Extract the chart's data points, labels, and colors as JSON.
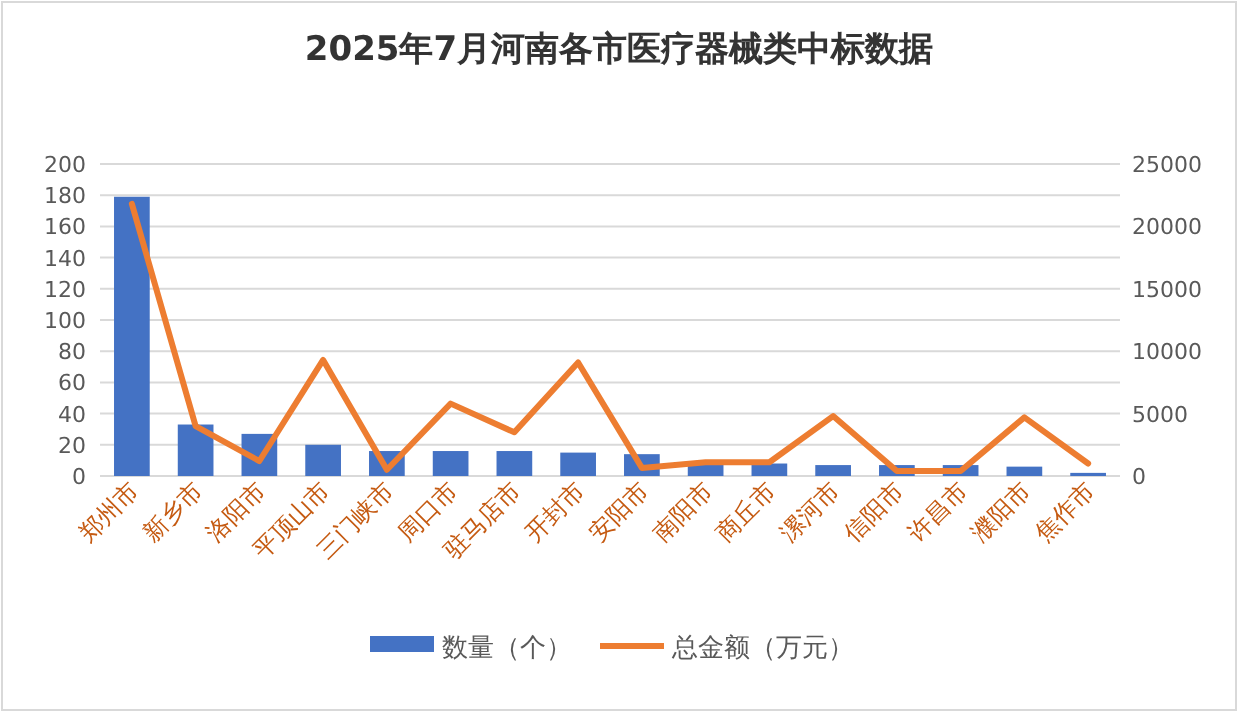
{
  "chart_data": {
    "type": "bar",
    "title": "2025年7月河南各市医疗器械类中标数据",
    "categories": [
      "郑州市",
      "新乡市",
      "洛阳市",
      "平顶山市",
      "三门峡市",
      "周口市",
      "驻马店市",
      "开封市",
      "安阳市",
      "南阳市",
      "商丘市",
      "漯河市",
      "信阳市",
      "许昌市",
      "濮阳市",
      "焦作市"
    ],
    "series": [
      {
        "name": "数量（个）",
        "color": "#4472c4",
        "values": [
          179,
          33,
          27,
          20,
          16,
          16,
          16,
          15,
          14,
          8,
          8,
          7,
          7,
          7,
          6,
          2
        ]
      },
      {
        "name": "总金额（万元）",
        "type": "line",
        "axis": "y2",
        "color": "#ed7d31",
        "values": [
          21800,
          4000,
          1200,
          9300,
          500,
          5800,
          3500,
          9100,
          650,
          1100,
          1100,
          4800,
          400,
          400,
          4700,
          1000
        ]
      }
    ],
    "ylim": [
      0,
      200
    ],
    "yticks": [
      0,
      20,
      40,
      60,
      80,
      100,
      120,
      140,
      160,
      180,
      200
    ],
    "y2lim": [
      0,
      25000
    ],
    "y2ticks": [
      0,
      5000,
      10000,
      15000,
      20000,
      25000
    ],
    "grid": "y",
    "legend": "bottom"
  }
}
